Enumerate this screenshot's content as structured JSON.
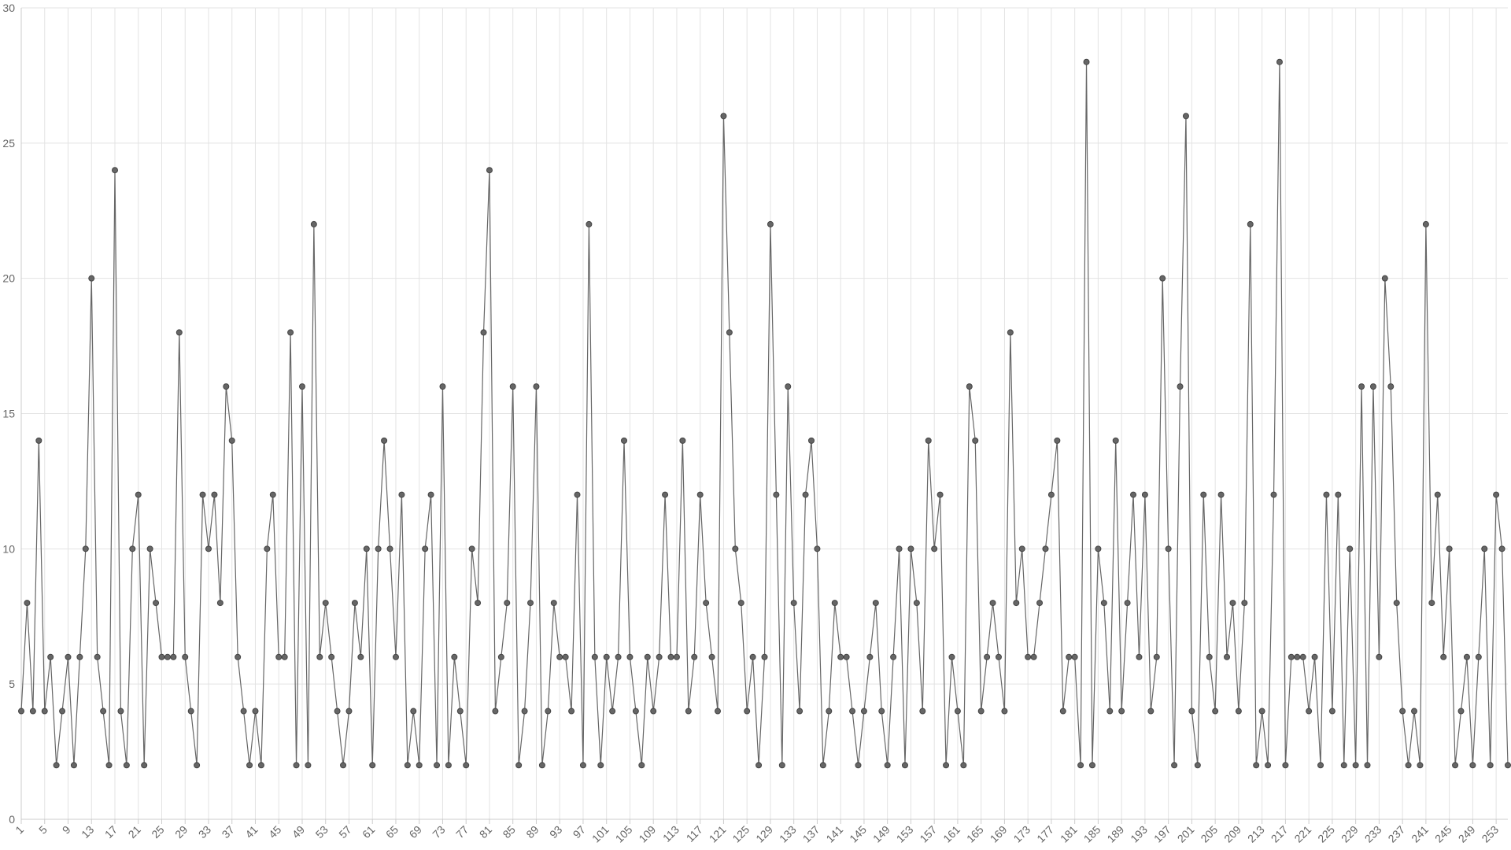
{
  "chart_data": {
    "type": "line",
    "x": [
      1,
      2,
      3,
      4,
      5,
      6,
      7,
      8,
      9,
      10,
      11,
      12,
      13,
      14,
      15,
      16,
      17,
      18,
      19,
      20,
      21,
      22,
      23,
      24,
      25,
      26,
      27,
      28,
      29,
      30,
      31,
      32,
      33,
      34,
      35,
      36,
      37,
      38,
      39,
      40,
      41,
      42,
      43,
      44,
      45,
      46,
      47,
      48,
      49,
      50,
      51,
      52,
      53,
      54,
      55,
      56,
      57,
      58,
      59,
      60,
      61,
      62,
      63,
      64,
      65,
      66,
      67,
      68,
      69,
      70,
      71,
      72,
      73,
      74,
      75,
      76,
      77,
      78,
      79,
      80,
      81,
      82,
      83,
      84,
      85,
      86,
      87,
      88,
      89,
      90,
      91,
      92,
      93,
      94,
      95,
      96,
      97,
      98,
      99,
      100,
      101,
      102,
      103,
      104,
      105,
      106,
      107,
      108,
      109,
      110,
      111,
      112,
      113,
      114,
      115,
      116,
      117,
      118,
      119,
      120,
      121,
      122,
      123,
      124,
      125,
      126,
      127,
      128,
      129,
      130,
      131,
      132,
      133,
      134,
      135,
      136,
      137,
      138,
      139,
      140,
      141,
      142,
      143,
      144,
      145,
      146,
      147,
      148,
      149,
      150,
      151,
      152,
      153,
      154,
      155,
      156,
      157,
      158,
      159,
      160,
      161,
      162,
      163,
      164,
      165,
      166,
      167,
      168,
      169,
      170,
      171,
      172,
      173,
      174,
      175,
      176,
      177,
      178,
      179,
      180,
      181,
      182,
      183,
      184,
      185,
      186,
      187,
      188,
      189,
      190,
      191,
      192,
      193,
      194,
      195,
      196,
      197,
      198,
      199,
      200,
      201,
      202,
      203,
      204,
      205,
      206,
      207,
      208,
      209,
      210,
      211,
      212,
      213,
      214,
      215,
      216,
      217,
      218,
      219,
      220,
      221,
      222,
      223,
      224,
      225,
      226,
      227,
      228,
      229,
      230,
      231,
      232,
      233,
      234,
      235,
      236,
      237,
      238,
      239,
      240,
      241,
      242,
      243,
      244,
      245,
      246,
      247,
      248,
      249,
      250,
      251,
      252,
      253,
      254,
      255
    ],
    "values": [
      4,
      8,
      4,
      14,
      4,
      6,
      2,
      4,
      6,
      2,
      6,
      10,
      20,
      6,
      4,
      2,
      24,
      4,
      2,
      10,
      12,
      2,
      10,
      8,
      6,
      6,
      6,
      18,
      6,
      4,
      2,
      12,
      10,
      12,
      8,
      16,
      14,
      6,
      4,
      2,
      4,
      2,
      10,
      12,
      6,
      6,
      18,
      2,
      16,
      2,
      22,
      6,
      8,
      6,
      4,
      2,
      4,
      8,
      6,
      10,
      2,
      10,
      14,
      10,
      6,
      12,
      2,
      4,
      2,
      10,
      12,
      2,
      16,
      2,
      6,
      4,
      2,
      10,
      8,
      18,
      24,
      4,
      6,
      8,
      16,
      2,
      4,
      8,
      16,
      2,
      4,
      8,
      6,
      6,
      4,
      12,
      2,
      22,
      6,
      2,
      6,
      4,
      6,
      14,
      6,
      4,
      2,
      6,
      4,
      6,
      12,
      6,
      6,
      14,
      4,
      6,
      12,
      8,
      6,
      4,
      26,
      18,
      10,
      8,
      4,
      6,
      2,
      6,
      22,
      12,
      2,
      16,
      8,
      4,
      12,
      14,
      10,
      2,
      4,
      8,
      6,
      6,
      4,
      2,
      4,
      6,
      8,
      4,
      2,
      6,
      10,
      2,
      10,
      8,
      4,
      14,
      10,
      12,
      2,
      6,
      4,
      2,
      16,
      14,
      4,
      6,
      8,
      6,
      4,
      18,
      8,
      10,
      6,
      6,
      8,
      10,
      12,
      14,
      4,
      6,
      6,
      2,
      28,
      2,
      10,
      8,
      4,
      14,
      4,
      8,
      12,
      6,
      12,
      4,
      6,
      20,
      10,
      2,
      16,
      26,
      4,
      2,
      12,
      6,
      4,
      12,
      6,
      8,
      4,
      8,
      22,
      2,
      4,
      2,
      12,
      28,
      2,
      6,
      6,
      6,
      4,
      6,
      2,
      12,
      4,
      12,
      2,
      10,
      2,
      16,
      2,
      16,
      6,
      20,
      16,
      8,
      4,
      2,
      4,
      2,
      22,
      8,
      12,
      6,
      10,
      2,
      4,
      6,
      2,
      6,
      10,
      2,
      12,
      10,
      2
    ],
    "color": "#666666",
    "xlim": [
      1,
      255
    ],
    "xticks": [
      1,
      5,
      9,
      13,
      17,
      21,
      25,
      29,
      33,
      37,
      41,
      45,
      49,
      53,
      57,
      61,
      65,
      69,
      73,
      77,
      81,
      85,
      89,
      93,
      97,
      101,
      105,
      109,
      113,
      117,
      121,
      125,
      129,
      133,
      137,
      141,
      145,
      149,
      153,
      157,
      161,
      165,
      169,
      173,
      177,
      181,
      185,
      189,
      193,
      197,
      201,
      205,
      209,
      213,
      217,
      221,
      225,
      229,
      233,
      237,
      241,
      245,
      249,
      253
    ],
    "ylim": [
      0,
      30
    ],
    "yticks": [
      0,
      5,
      10,
      15,
      20,
      25,
      30
    ],
    "grid": true
  }
}
